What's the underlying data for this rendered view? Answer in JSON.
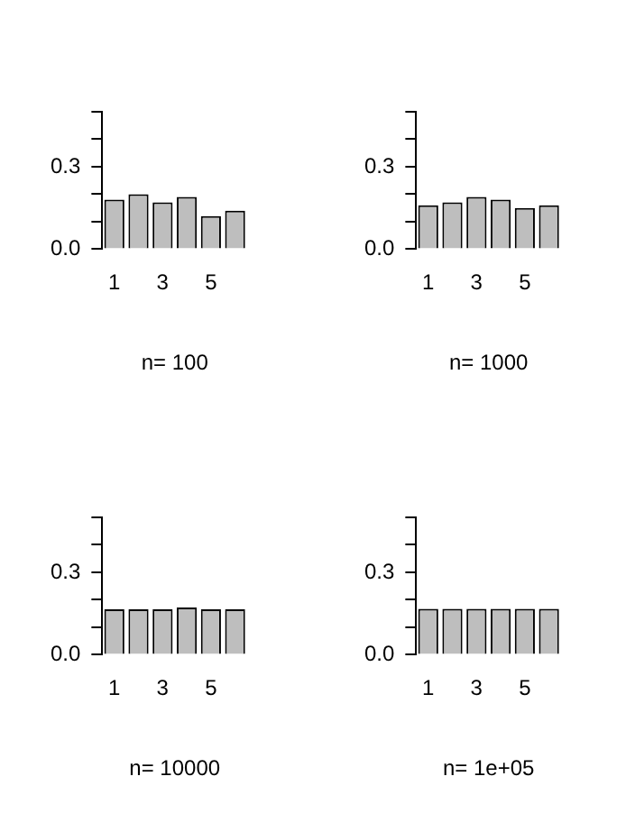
{
  "chart_data": [
    {
      "type": "bar",
      "categories": [
        "1",
        null,
        "3",
        null,
        "5",
        null
      ],
      "values": [
        0.18,
        0.2,
        0.17,
        0.19,
        0.12,
        0.14
      ],
      "color": "#bebebe",
      "xlabel": "n= 100",
      "ylim": [
        0,
        0.5
      ],
      "yticks": [
        {
          "value": 0,
          "label": "0.0"
        },
        {
          "value": 0.1,
          "label": null
        },
        {
          "value": 0.2,
          "label": null
        },
        {
          "value": 0.3,
          "label": "0.3"
        },
        {
          "value": 0.4,
          "label": null
        },
        {
          "value": 0.5,
          "label": null
        }
      ]
    },
    {
      "type": "bar",
      "categories": [
        "1",
        null,
        "3",
        null,
        "5",
        null
      ],
      "values": [
        0.16,
        0.17,
        0.19,
        0.18,
        0.15,
        0.16
      ],
      "color": "#bebebe",
      "xlabel": "n= 1000",
      "ylim": [
        0,
        0.5
      ],
      "yticks": [
        {
          "value": 0,
          "label": "0.0"
        },
        {
          "value": 0.1,
          "label": null
        },
        {
          "value": 0.2,
          "label": null
        },
        {
          "value": 0.3,
          "label": "0.3"
        },
        {
          "value": 0.4,
          "label": null
        },
        {
          "value": 0.5,
          "label": null
        }
      ]
    },
    {
      "type": "bar",
      "categories": [
        "1",
        null,
        "3",
        null,
        "5",
        null
      ],
      "values": [
        0.165,
        0.165,
        0.165,
        0.172,
        0.165,
        0.165
      ],
      "color": "#bebebe",
      "xlabel": "n= 10000",
      "ylim": [
        0,
        0.5
      ],
      "yticks": [
        {
          "value": 0,
          "label": "0.0"
        },
        {
          "value": 0.1,
          "label": null
        },
        {
          "value": 0.2,
          "label": null
        },
        {
          "value": 0.3,
          "label": "0.3"
        },
        {
          "value": 0.4,
          "label": null
        },
        {
          "value": 0.5,
          "label": null
        }
      ]
    },
    {
      "type": "bar",
      "categories": [
        "1",
        null,
        "3",
        null,
        "5",
        null
      ],
      "values": [
        0.167,
        0.167,
        0.167,
        0.167,
        0.167,
        0.167
      ],
      "color": "#bebebe",
      "xlabel": "n= 1e+05",
      "ylim": [
        0,
        0.5
      ],
      "yticks": [
        {
          "value": 0,
          "label": "0.0"
        },
        {
          "value": 0.1,
          "label": null
        },
        {
          "value": 0.2,
          "label": null
        },
        {
          "value": 0.3,
          "label": "0.3"
        },
        {
          "value": 0.4,
          "label": null
        },
        {
          "value": 0.5,
          "label": null
        }
      ]
    }
  ]
}
